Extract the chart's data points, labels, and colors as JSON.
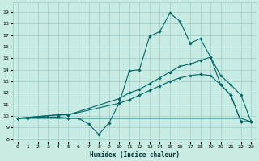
{
  "xlabel": "Humidex (Indice chaleur)",
  "bg_color": "#c8ebe3",
  "grid_color": "#9dcec5",
  "line_color": "#006868",
  "xlim": [
    -0.5,
    23.5
  ],
  "ylim": [
    7.8,
    19.8
  ],
  "xticks": [
    0,
    1,
    2,
    3,
    4,
    5,
    6,
    7,
    8,
    9,
    10,
    11,
    12,
    13,
    14,
    15,
    16,
    17,
    18,
    19,
    20,
    21,
    22,
    23
  ],
  "yticks": [
    8,
    9,
    10,
    11,
    12,
    13,
    14,
    15,
    16,
    17,
    18,
    19
  ],
  "series": [
    {
      "x": [
        0,
        1,
        2,
        3,
        4,
        5,
        6,
        7,
        8,
        9,
        10,
        11,
        12,
        13,
        14,
        15,
        16,
        17,
        18,
        19,
        20,
        21,
        22,
        23
      ],
      "y": [
        9.8,
        9.8,
        9.9,
        9.9,
        9.9,
        9.8,
        9.8,
        9.3,
        8.4,
        9.4,
        11.1,
        13.9,
        14.0,
        16.9,
        17.3,
        18.9,
        18.2,
        16.3,
        16.7,
        15.1,
        12.7,
        11.8,
        9.5,
        9.5
      ],
      "marker": true
    },
    {
      "x": [
        0,
        1,
        2,
        3,
        4,
        5,
        6,
        7,
        8,
        9,
        10,
        11,
        12,
        13,
        14,
        15,
        16,
        17,
        18,
        19,
        20,
        21,
        22,
        23
      ],
      "y": [
        9.8,
        9.8,
        9.8,
        9.8,
        9.8,
        9.8,
        9.8,
        9.8,
        9.8,
        9.8,
        9.8,
        9.8,
        9.8,
        9.8,
        9.8,
        9.8,
        9.8,
        9.8,
        9.8,
        9.8,
        9.8,
        9.8,
        9.8,
        9.5
      ],
      "marker": false
    },
    {
      "x": [
        0,
        4,
        5,
        10,
        11,
        12,
        13,
        14,
        15,
        16,
        17,
        18,
        19,
        20,
        21,
        22,
        23
      ],
      "y": [
        9.8,
        10.1,
        10.1,
        11.5,
        12.0,
        12.3,
        12.8,
        13.3,
        13.8,
        14.3,
        14.5,
        14.8,
        15.1,
        13.5,
        12.7,
        11.8,
        9.5
      ],
      "marker": true
    },
    {
      "x": [
        0,
        4,
        5,
        10,
        11,
        12,
        13,
        14,
        15,
        16,
        17,
        18,
        19,
        20,
        21,
        22,
        23
      ],
      "y": [
        9.8,
        10.1,
        10.1,
        11.1,
        11.4,
        11.8,
        12.2,
        12.6,
        13.0,
        13.3,
        13.5,
        13.6,
        13.5,
        12.7,
        11.8,
        9.5,
        9.5
      ],
      "marker": true
    }
  ]
}
